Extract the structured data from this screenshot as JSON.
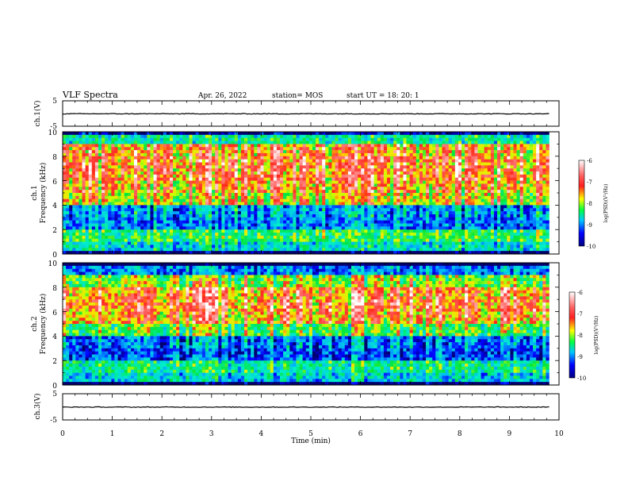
{
  "header": {
    "title": "VLF Spectra",
    "date": "Apr. 26, 2022",
    "station": "station= MOS",
    "start": "start UT = 18: 20: 1"
  },
  "panels": {
    "ch1_voltage": {
      "ylabel": "ch.1(V)",
      "ticks": [
        "5",
        "-5"
      ]
    },
    "ch1_spectrogram": {
      "ylabel_channel": "ch.1",
      "ylabel": "Frequency (kHz)",
      "ticks": [
        "10",
        "8",
        "6",
        "4",
        "2",
        "0"
      ]
    },
    "ch2_spectrogram": {
      "ylabel_channel": "ch.2",
      "ylabel": "Frequency (kHz)",
      "ticks": [
        "10",
        "8",
        "6",
        "4",
        "2",
        "0"
      ]
    },
    "ch3_voltage": {
      "ylabel": "ch.3(V)",
      "ticks": [
        "5",
        "-5"
      ]
    }
  },
  "xaxis": {
    "label": "Time (min)",
    "ticks": [
      "0",
      "1",
      "2",
      "3",
      "4",
      "5",
      "6",
      "7",
      "8",
      "9",
      "10"
    ]
  },
  "colorbar": {
    "label": "log(PSD)(V²/Hz)",
    "ticks": [
      "-6",
      "-7",
      "-8",
      "-9",
      "-10"
    ],
    "colors": [
      "#ffffff",
      "#ff2020",
      "#ffff00",
      "#00ff40",
      "#00c8ff",
      "#0000ff",
      "#000080"
    ]
  },
  "chart_data": [
    {
      "type": "line",
      "series": [
        {
          "values": [
            -0.1,
            -0.1,
            -0.1,
            -0.1,
            -0.1,
            -0.1,
            -0.1,
            -0.1,
            -0.1,
            -0.1,
            -0.1
          ]
        }
      ],
      "x": [
        0,
        1,
        2,
        3,
        4,
        5,
        6,
        7,
        8,
        9,
        9.8
      ],
      "xlim": [
        0,
        10
      ],
      "ylim": [
        -5,
        5
      ],
      "xlabel": "Time (min)",
      "ylabel": "ch.1(V)"
    },
    {
      "type": "heatmap",
      "xlim": [
        0,
        10
      ],
      "ylim": [
        0,
        10
      ],
      "xlabel": "Time (min)",
      "ylabel": "Frequency (kHz)",
      "zlim": [
        -10,
        -6
      ],
      "frequency_bands_kHz": [
        0,
        1,
        2,
        3,
        4,
        5,
        6,
        7,
        8,
        9,
        10
      ],
      "log_psd_by_band": [
        -8.5,
        -8.0,
        -9.0,
        -8.8,
        -7.3,
        -7.0,
        -6.8,
        -6.8,
        -7.0,
        -8.3
      ],
      "data_extent_min": 9.8
    },
    {
      "type": "heatmap",
      "xlim": [
        0,
        10
      ],
      "ylim": [
        0,
        10
      ],
      "xlabel": "Time (min)",
      "ylabel": "Frequency (kHz)",
      "zlim": [
        -10,
        -6
      ],
      "frequency_bands_kHz": [
        0,
        1,
        2,
        3,
        4,
        5,
        6,
        7,
        8,
        9,
        10
      ],
      "log_psd_by_band": [
        -8.6,
        -8.2,
        -9.2,
        -9.0,
        -7.8,
        -7.0,
        -6.8,
        -6.9,
        -7.6,
        -9.0
      ],
      "data_extent_min": 9.8
    },
    {
      "type": "line",
      "series": [
        {
          "values": [
            -0.1,
            -0.1,
            -0.1,
            -0.1,
            -0.1,
            -0.1,
            -0.1,
            -0.1,
            -0.1,
            -0.1,
            -0.1
          ]
        }
      ],
      "x": [
        0,
        1,
        2,
        3,
        4,
        5,
        6,
        7,
        8,
        9,
        9.8
      ],
      "xlim": [
        0,
        10
      ],
      "ylim": [
        -5,
        5
      ],
      "xlabel": "Time (min)",
      "ylabel": "ch.3(V)"
    }
  ]
}
